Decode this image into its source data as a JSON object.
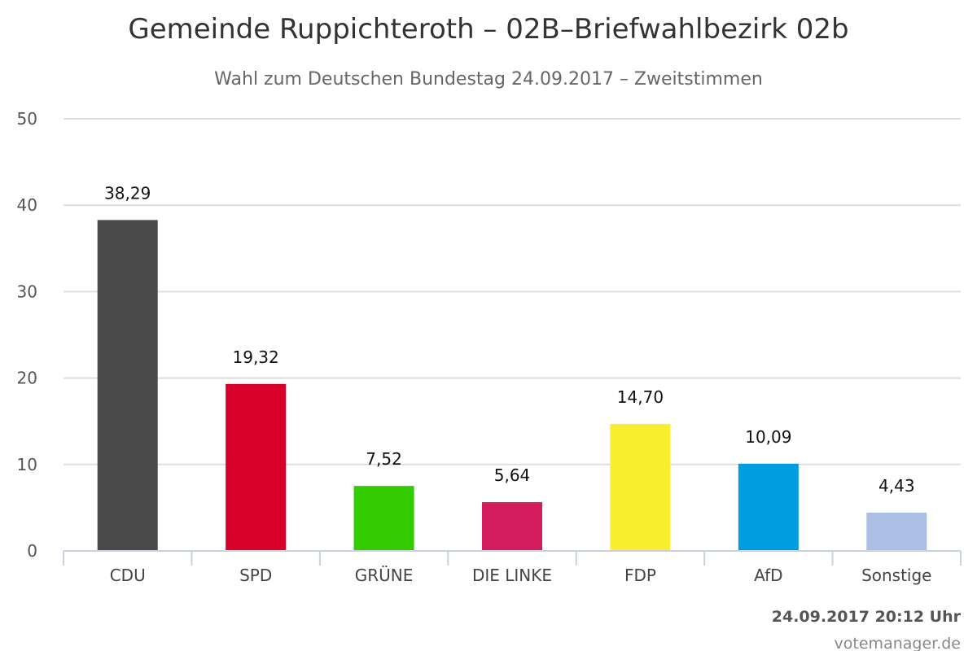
{
  "chart_data": {
    "type": "bar",
    "title": "Gemeinde Ruppichteroth – 02B–Briefwahlbezirk 02b",
    "subtitle": "Wahl zum Deutschen Bundestag 24.09.2017 – Zweitstimmen",
    "categories": [
      "CDU",
      "SPD",
      "GRÜNE",
      "DIE LINKE",
      "FDP",
      "AfD",
      "Sonstige"
    ],
    "values": [
      38.29,
      19.32,
      7.52,
      5.64,
      14.7,
      10.09,
      4.43
    ],
    "value_labels": [
      "38,29",
      "19,32",
      "7,52",
      "5,64",
      "14,70",
      "10,09",
      "4,43"
    ],
    "colors": [
      "#4a4a4a",
      "#d7002b",
      "#33cc00",
      "#d21c5c",
      "#f9ed2f",
      "#009ee0",
      "#aabfe3"
    ],
    "ylim": [
      0,
      50
    ],
    "yticks": [
      0,
      10,
      20,
      30,
      40,
      50
    ],
    "grid": true,
    "timestamp": "24.09.2017 20:12 Uhr",
    "credits": "votemanager.de"
  }
}
